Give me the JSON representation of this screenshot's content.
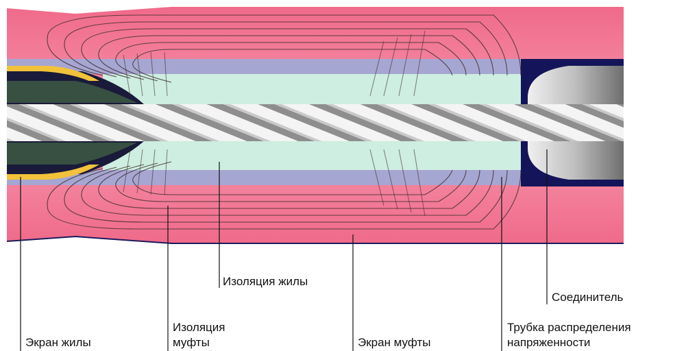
{
  "labels": {
    "core_insulation": "Изоляция жилы",
    "connector": "Соединитель",
    "sleeve_insulation_line1": "Изоляция",
    "sleeve_insulation_line2": "муфты",
    "stress_tube_line1": "Трубка распределения",
    "stress_tube_line2": "напряженности",
    "core_screen": "Экран жилы",
    "sleeve_screen": "Экран муфты"
  },
  "colors": {
    "sleeve_body": "#f0708e",
    "sleeve_body_light": "#f7a2b6",
    "stress_tube": "#a8a8d4",
    "core_insulation": "#cdeee0",
    "conductor_light": "#f4f4f4",
    "conductor_dark": "#9a9a9a",
    "screen_dark": "#14145a",
    "semicon_yellow": "#f2c23a",
    "field_lines": "#3a2a2a",
    "connector": "#c8c8c8"
  }
}
